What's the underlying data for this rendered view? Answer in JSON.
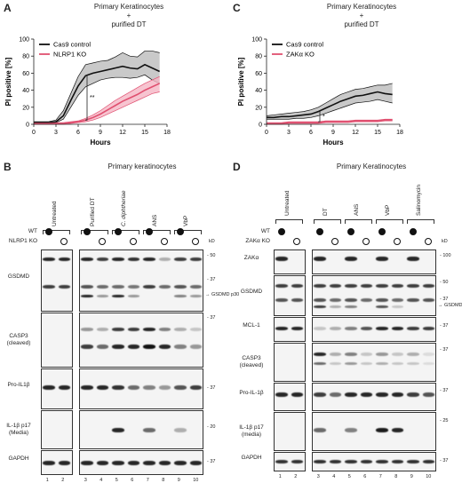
{
  "panels": {
    "A": {
      "letter": "A",
      "title_line1": "Primary Keratinocytes",
      "title_line2": "+",
      "title_line3": "purified DT",
      "sig": "**",
      "chart_data": {
        "type": "line",
        "ylabel": "PI positive [%]",
        "xlabel": "Hours",
        "xlim": [
          0,
          18
        ],
        "ylim": [
          0,
          100
        ],
        "xticks": [
          0,
          3,
          6,
          9,
          12,
          15,
          18
        ],
        "yticks": [
          0,
          20,
          40,
          60,
          80,
          100
        ],
        "series": [
          {
            "name": "Cas9 control",
            "color": "#111111",
            "band": "#bbbbbb",
            "x": [
              0,
              1,
              2,
              3,
              4,
              5,
              6,
              7,
              8,
              9,
              10,
              11,
              12,
              13,
              14,
              15,
              16,
              17
            ],
            "y": [
              2,
              2,
              2,
              3,
              10,
              28,
              45,
              57,
              60,
              62,
              64,
              66,
              68,
              66,
              65,
              70,
              66,
              62
            ],
            "lo": [
              1,
              1,
              1,
              2,
              6,
              20,
              34,
              44,
              48,
              52,
              54,
              55,
              55,
              54,
              55,
              58,
              52,
              48
            ],
            "hi": [
              3,
              3,
              3,
              5,
              16,
              36,
              56,
              70,
              72,
              74,
              75,
              79,
              84,
              80,
              79,
              86,
              86,
              84
            ]
          },
          {
            "name": "NLRP1 KO",
            "color": "#e05070",
            "band": "#f5b5c4",
            "x": [
              0,
              1,
              2,
              3,
              4,
              5,
              6,
              7,
              8,
              9,
              10,
              11,
              12,
              13,
              14,
              15,
              16,
              17
            ],
            "y": [
              1,
              1,
              1,
              1,
              1,
              2,
              3,
              5,
              8,
              12,
              17,
              22,
              27,
              31,
              35,
              40,
              44,
              48
            ],
            "lo": [
              0,
              0,
              0,
              0,
              0,
              1,
              2,
              3,
              5,
              8,
              12,
              16,
              20,
              24,
              28,
              32,
              36,
              38
            ],
            "hi": [
              2,
              2,
              2,
              2,
              2,
              3,
              4,
              7,
              11,
              16,
              22,
              28,
              33,
              38,
              43,
              48,
              52,
              56
            ]
          }
        ]
      }
    },
    "C": {
      "letter": "C",
      "title_line1": "Primary Keratinocytes",
      "title_line2": "+",
      "title_line3": "purified DT",
      "sig": "*",
      "chart_data": {
        "type": "line",
        "ylabel": "PI positive [%]",
        "xlabel": "Hours",
        "xlim": [
          0,
          18
        ],
        "ylim": [
          0,
          100
        ],
        "xticks": [
          0,
          3,
          6,
          9,
          12,
          15,
          18
        ],
        "yticks": [
          0,
          20,
          40,
          60,
          80,
          100
        ],
        "series": [
          {
            "name": "Cas9 control",
            "color": "#111111",
            "band": "#bbbbbb",
            "x": [
              0,
              1,
              2,
              3,
              4,
              5,
              6,
              7,
              8,
              9,
              10,
              11,
              12,
              13,
              14,
              15,
              16,
              17
            ],
            "y": [
              8,
              8,
              9,
              9,
              10,
              11,
              12,
              15,
              19,
              23,
              27,
              30,
              33,
              34,
              36,
              38,
              36,
              35
            ],
            "lo": [
              6,
              6,
              6,
              6,
              7,
              7,
              8,
              10,
              13,
              16,
              19,
              22,
              25,
              26,
              27,
              29,
              27,
              25
            ],
            "hi": [
              10,
              11,
              12,
              13,
              14,
              15,
              17,
              20,
              25,
              30,
              35,
              38,
              41,
              42,
              44,
              46,
              46,
              48
            ]
          },
          {
            "name": "ZAKα KO",
            "color": "#e05070",
            "band": "#f5b5c4",
            "x": [
              0,
              1,
              2,
              3,
              4,
              5,
              6,
              7,
              8,
              9,
              10,
              11,
              12,
              13,
              14,
              15,
              16,
              17
            ],
            "y": [
              1,
              1,
              1,
              2,
              2,
              2,
              2,
              2,
              3,
              3,
              3,
              3,
              4,
              4,
              4,
              4,
              5,
              5
            ],
            "lo": [
              0,
              0,
              0,
              1,
              1,
              1,
              1,
              1,
              2,
              2,
              2,
              2,
              3,
              3,
              3,
              3,
              4,
              4
            ],
            "hi": [
              2,
              2,
              2,
              3,
              3,
              3,
              3,
              3,
              4,
              4,
              4,
              4,
              5,
              5,
              5,
              5,
              6,
              6
            ]
          }
        ]
      }
    },
    "B": {
      "letter": "B",
      "title": "Primary keratinocytes",
      "conditions": [
        "Untreated",
        "Purified DT",
        "C. diphtheriae",
        "ANS",
        "VbP"
      ],
      "wt_label": "WT",
      "ko_label": "NLRP1 KO",
      "kd_label": "kD",
      "rows": [
        "GSDMD",
        "CASP3 (cleaved)",
        "Pro-IL1β",
        "IL-1β p17 (Media)",
        "GAPDH"
      ],
      "markers": [
        "50",
        "37",
        "37",
        "37",
        "20",
        "37"
      ],
      "gsdmd_p30": "GSDMD p30",
      "lanes": [
        "1",
        "2",
        "3",
        "4",
        "5",
        "6",
        "7",
        "8",
        "9",
        "10"
      ]
    },
    "D": {
      "letter": "D",
      "title": "Primary Keratinocytes",
      "conditions": [
        "Untreated",
        "DT",
        "ANS",
        "VbP",
        "Salinomycin"
      ],
      "wt_label": "WT",
      "ko_label": "ZAKα KO",
      "kd_label": "kD",
      "rows": [
        "ZAKα",
        "GSDMD",
        "MCL-1",
        "CASP3 (cleaved)",
        "Pro-IL-1β",
        "IL-1β p17 (media)",
        "GAPDH"
      ],
      "markers": [
        "100",
        "50",
        "37",
        "37",
        "37",
        "37",
        "25",
        "37"
      ],
      "gsdmd_p30": "GSDMD p30",
      "lanes": [
        "1",
        "2",
        "3",
        "4",
        "5",
        "6",
        "7",
        "8",
        "9",
        "10"
      ]
    }
  }
}
